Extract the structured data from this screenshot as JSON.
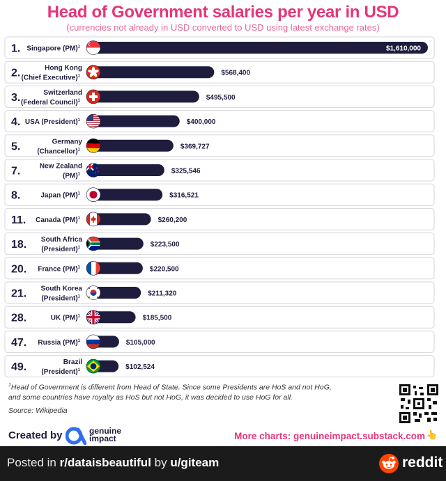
{
  "header": {
    "title": "Head of Government salaries per year in USD",
    "subtitle": "(currencies not already in USD converted to USD using latest exchange rates)"
  },
  "chart_data": {
    "type": "bar",
    "orientation": "horizontal",
    "title": "Head of Government salaries per year in USD",
    "subtitle": "(currencies not already in USD converted to USD using latest exchange rates)",
    "value_unit": "USD",
    "xlim": [
      0,
      1610000
    ],
    "grid": false,
    "rows": [
      {
        "rank": "1.",
        "line1": "Singapore (PM)",
        "line2": "",
        "flag": "singapore",
        "value": 1610000,
        "value_label": "$1,610,000"
      },
      {
        "rank": "2.",
        "line1": "Hong Kong",
        "line2": "(Chief Executive)",
        "flag": "hong-kong",
        "value": 568400,
        "value_label": "$568,400"
      },
      {
        "rank": "3.",
        "line1": "Switzerland",
        "line2": "(Federal Council)",
        "flag": "switzerland",
        "value": 495500,
        "value_label": "$495,500"
      },
      {
        "rank": "4.",
        "line1": "USA (President)",
        "line2": "",
        "flag": "usa",
        "value": 400000,
        "value_label": "$400,000"
      },
      {
        "rank": "5.",
        "line1": "Germany",
        "line2": "(Chancellor)",
        "flag": "germany",
        "value": 369727,
        "value_label": "$369,727"
      },
      {
        "rank": "7.",
        "line1": "New Zealand",
        "line2": "(PM)",
        "flag": "new-zealand",
        "value": 325546,
        "value_label": "$325,546"
      },
      {
        "rank": "8.",
        "line1": "Japan (PM)",
        "line2": "",
        "flag": "japan",
        "value": 316521,
        "value_label": "$316,521"
      },
      {
        "rank": "11.",
        "line1": "Canada (PM)",
        "line2": "",
        "flag": "canada",
        "value": 260200,
        "value_label": "$260,200"
      },
      {
        "rank": "18.",
        "line1": "South Africa",
        "line2": "(President)",
        "flag": "south-africa",
        "value": 223500,
        "value_label": "$223,500"
      },
      {
        "rank": "20.",
        "line1": "France (PM)",
        "line2": "",
        "flag": "france",
        "value": 220500,
        "value_label": "$220,500"
      },
      {
        "rank": "21.",
        "line1": "South Korea",
        "line2": "(President)",
        "flag": "south-korea",
        "value": 211320,
        "value_label": "$211,320"
      },
      {
        "rank": "28.",
        "line1": "UK (PM)",
        "line2": "",
        "flag": "uk",
        "value": 185500,
        "value_label": "$185,500"
      },
      {
        "rank": "47.",
        "line1": "Russia (PM)",
        "line2": "",
        "flag": "russia",
        "value": 105000,
        "value_label": "$105,000"
      },
      {
        "rank": "49.",
        "line1": "Brazil",
        "line2": "(President)",
        "flag": "brazil",
        "value": 102524,
        "value_label": "$102,524"
      }
    ],
    "footnote_marker": "1"
  },
  "footer": {
    "footnote_line1": "Head of Government is different from Head of State. Since some Presidents are HoS and not HoG,",
    "footnote_line2": "and some countries have royalty as HoS but not HoG, it was decided to use HoG for all.",
    "source": "Source: Wikipedia",
    "created_by": "Created by",
    "brand_line1": "genuine",
    "brand_line2": "impact",
    "more_charts": "More charts: genuineimpact.substack.com"
  },
  "reddit": {
    "posted_prefix": "Posted in ",
    "subreddit": "r/dataisbeautiful",
    "by": " by ",
    "user": "u/giteam",
    "logo_text": "reddit"
  },
  "colors": {
    "title": "#e6357a",
    "bar": "#1f1d3d",
    "text": "#1f1d3d",
    "reddit_bar": "#1b1b1b",
    "reddit_orange": "#ff4500"
  }
}
